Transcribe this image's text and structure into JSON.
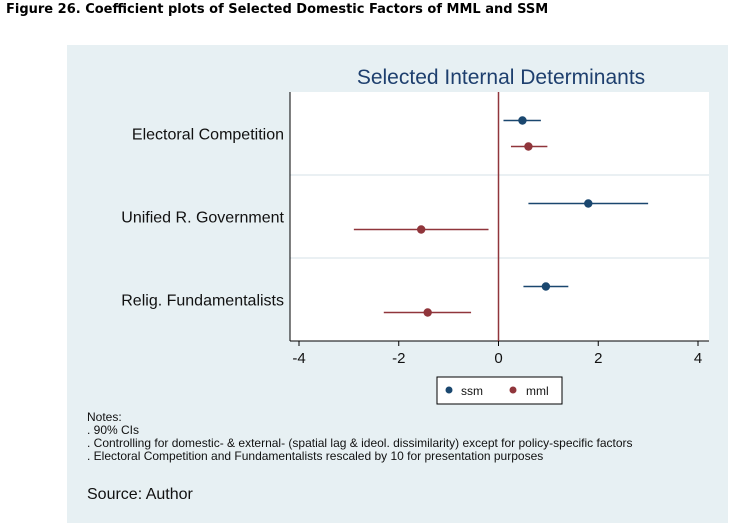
{
  "figure_caption": "Figure 26. Coefficient plots of Selected Domestic Factors of MML and SSM",
  "chart_data": {
    "type": "scatter",
    "subtype": "coefficient-plot",
    "title": "Selected Internal Determinants",
    "categories": [
      "Electoral Competition",
      "Unified R. Government",
      "Relig. Fundamentalists"
    ],
    "xlim": [
      -4,
      4
    ],
    "xticks": [
      -4,
      -2,
      0,
      2,
      4
    ],
    "reference_line": 0,
    "grid": "horizontal-between-categories",
    "legend_position": "bottom-center",
    "series": [
      {
        "name": "ssm",
        "color": "#1a476f",
        "points": [
          {
            "category": "Electoral Competition",
            "estimate": 0.48,
            "ci": [
              0.1,
              0.85
            ]
          },
          {
            "category": "Unified R. Government",
            "estimate": 1.8,
            "ci": [
              0.6,
              3.0
            ]
          },
          {
            "category": "Relig. Fundamentalists",
            "estimate": 0.95,
            "ci": [
              0.5,
              1.4
            ]
          }
        ]
      },
      {
        "name": "mml",
        "color": "#90353b",
        "points": [
          {
            "category": "Electoral Competition",
            "estimate": 0.6,
            "ci": [
              0.25,
              0.98
            ]
          },
          {
            "category": "Unified R. Government",
            "estimate": -1.55,
            "ci": [
              -2.9,
              -0.2
            ]
          },
          {
            "category": "Relig. Fundamentalists",
            "estimate": -1.42,
            "ci": [
              -2.3,
              -0.55
            ]
          }
        ]
      }
    ],
    "reference_line_color": "#90353b"
  },
  "notes": {
    "heading": "Notes:",
    "lines": [
      ". 90% CIs",
      ". Controlling for domestic- & external- (spatial lag & ideol. dissimilarity) except for policy-specific factors",
      ". Electoral Competition and Fundamentalists rescaled by 10 for presentation purposes"
    ]
  },
  "source": "Source: Author"
}
